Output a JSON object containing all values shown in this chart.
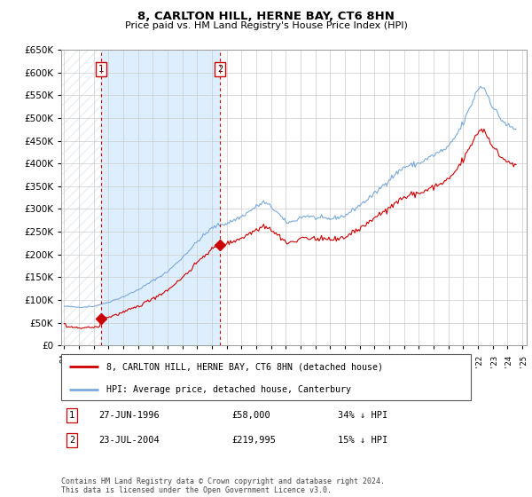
{
  "title": "8, CARLTON HILL, HERNE BAY, CT6 8HN",
  "subtitle": "Price paid vs. HM Land Registry's House Price Index (HPI)",
  "ylim": [
    0,
    650000
  ],
  "yticks": [
    0,
    50000,
    100000,
    150000,
    200000,
    250000,
    300000,
    350000,
    400000,
    450000,
    500000,
    550000,
    600000,
    650000
  ],
  "xlim_start": 1994.0,
  "xlim_end": 2025.3,
  "sale1_year": 1996.49,
  "sale1_price": 58000,
  "sale1_label": "1",
  "sale1_date": "27-JUN-1996",
  "sale1_price_str": "£58,000",
  "sale1_hpi": "34% ↓ HPI",
  "sale2_year": 2004.55,
  "sale2_price": 219995,
  "sale2_label": "2",
  "sale2_date": "23-JUL-2004",
  "sale2_price_str": "£219,995",
  "sale2_hpi": "15% ↓ HPI",
  "house_color": "#cc0000",
  "hpi_color": "#7aaadd",
  "shade_color": "#ddeeff",
  "legend_house": "8, CARLTON HILL, HERNE BAY, CT6 8HN (detached house)",
  "legend_hpi": "HPI: Average price, detached house, Canterbury",
  "footnote": "Contains HM Land Registry data © Crown copyright and database right 2024.\nThis data is licensed under the Open Government Licence v3.0."
}
